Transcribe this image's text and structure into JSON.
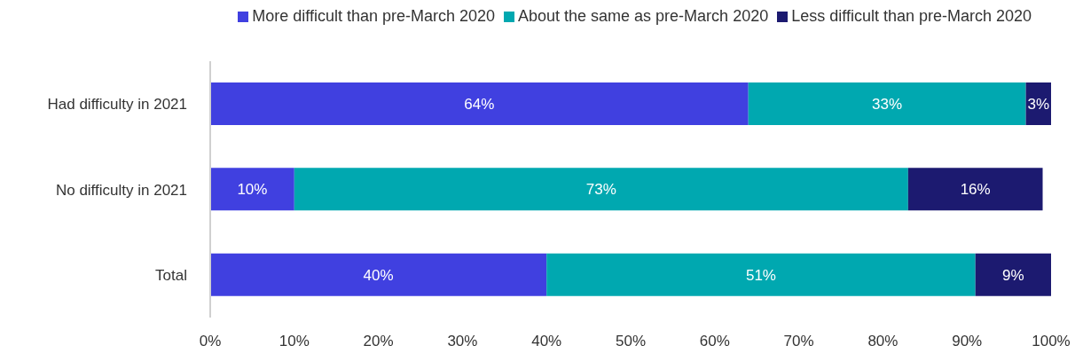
{
  "chart_data": {
    "type": "bar",
    "orientation": "horizontal",
    "stacked": true,
    "categories": [
      "Had difficulty in 2021",
      "No difficulty in 2021",
      "Total"
    ],
    "series": [
      {
        "name": "More difficult than pre-March 2020",
        "color": "#4040e0",
        "values": [
          64,
          10,
          40
        ],
        "value_labels": [
          "64%",
          "10%",
          "40%"
        ]
      },
      {
        "name": "About the same as pre-March 2020",
        "color": "#00a8b0",
        "values": [
          33,
          73,
          51
        ],
        "value_labels": [
          "33%",
          "73%",
          "51%"
        ]
      },
      {
        "name": "Less difficult than pre-March 2020",
        "color": "#1c1a70",
        "values": [
          3,
          16,
          9
        ],
        "value_labels": [
          "3%",
          "16%",
          "9%"
        ]
      }
    ],
    "xlim": [
      0,
      100
    ],
    "xticks": [
      {
        "value": 0,
        "label": "0%"
      },
      {
        "value": 10,
        "label": "10%"
      },
      {
        "value": 20,
        "label": "20%"
      },
      {
        "value": 30,
        "label": "30%"
      },
      {
        "value": 40,
        "label": "40%"
      },
      {
        "value": 50,
        "label": "50%"
      },
      {
        "value": 60,
        "label": "60%"
      },
      {
        "value": 70,
        "label": "70%"
      },
      {
        "value": 80,
        "label": "80%"
      },
      {
        "value": 90,
        "label": "90%"
      },
      {
        "value": 100,
        "label": "100%"
      }
    ],
    "grid": false,
    "legend": "top"
  }
}
